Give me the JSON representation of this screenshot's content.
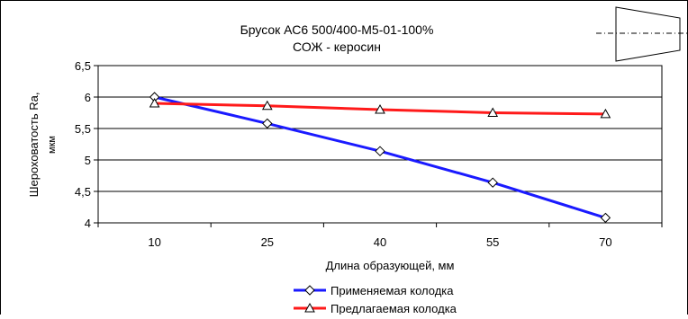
{
  "chart_data": {
    "type": "line",
    "title": "Брусок АС6 500/400-М5-01-100%",
    "subtitle": "СОЖ - керосин",
    "xlabel": "Длина образующей, мм",
    "ylabel_line1": "Шероховатость Ra,",
    "ylabel_line2": "мкм",
    "categories": [
      "10",
      "25",
      "40",
      "55",
      "70"
    ],
    "y_ticks": [
      "4",
      "4,5",
      "5",
      "5,5",
      "6",
      "6,5"
    ],
    "ylim": [
      4,
      6.5
    ],
    "grid": true,
    "legend_position": "bottom",
    "series": [
      {
        "name": "Применяемая колодка",
        "values": [
          6.0,
          5.58,
          5.14,
          4.64,
          4.08
        ],
        "color": "#1a1aff",
        "marker": "diamond"
      },
      {
        "name": "Предлагаемая колодка",
        "values": [
          5.9,
          5.86,
          5.8,
          5.75,
          5.73
        ],
        "color": "#ff1a1a",
        "marker": "triangle"
      }
    ]
  }
}
